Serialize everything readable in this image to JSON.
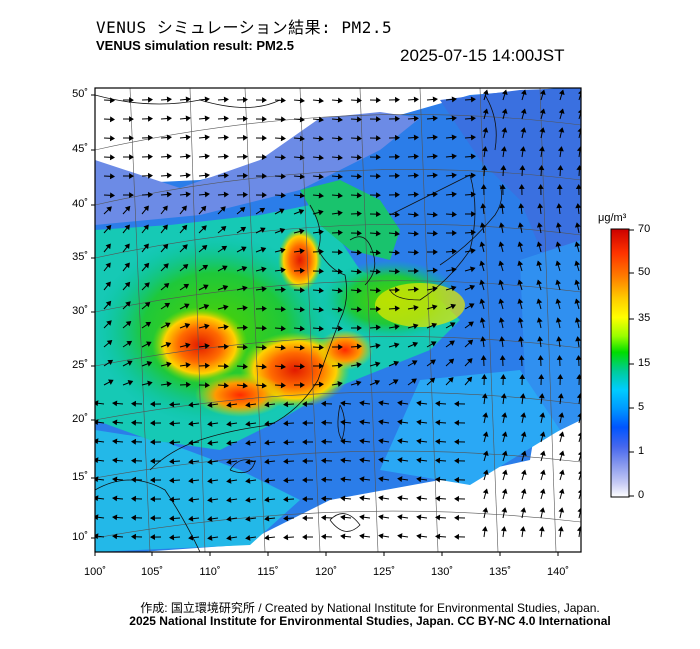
{
  "header": {
    "title_jp": "VENUS シミュレーション結果: PM2.5",
    "title_en": "VENUS simulation result: PM2.5",
    "timestamp": "2025-07-15 14:00JST"
  },
  "map": {
    "lat_labels": [
      "50˚",
      "45˚",
      "40˚",
      "35˚",
      "30˚",
      "25˚",
      "20˚",
      "15˚",
      "10˚"
    ],
    "lon_labels": [
      "100˚",
      "105˚",
      "110˚",
      "115˚",
      "120˚",
      "125˚",
      "130˚",
      "135˚",
      "140˚"
    ]
  },
  "colorbar": {
    "unit": "μg/m³",
    "ticks": [
      "70",
      "50",
      "35",
      "15",
      "5",
      "1",
      "0"
    ],
    "colors": [
      "#cc0000",
      "#ff3300",
      "#ff7f00",
      "#ffcc00",
      "#ffff00",
      "#99ff00",
      "#00dd00",
      "#00cc99",
      "#00ccff",
      "#0099ff",
      "#0055ff",
      "#4466ee",
      "#8899ee",
      "#c8ccf5",
      "#ffffff"
    ]
  },
  "footer": {
    "credit_line1": "作成: 国立環境研究所 / Created by National Institute for Environmental Studies, Japan.",
    "credit_line2": "2025 National Institute for Environmental Studies, Japan. CC BY-NC 4.0 International"
  }
}
